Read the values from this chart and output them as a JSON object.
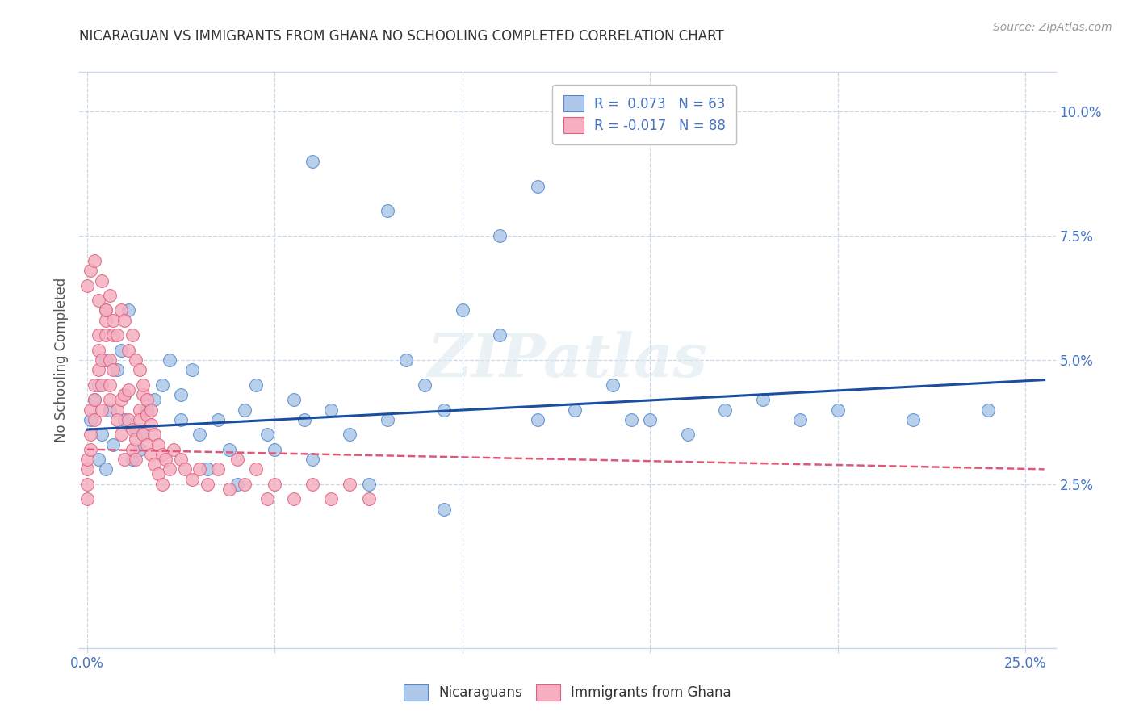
{
  "title": "NICARAGUAN VS IMMIGRANTS FROM GHANA NO SCHOOLING COMPLETED CORRELATION CHART",
  "source": "Source: ZipAtlas.com",
  "xlabel_ticks_shown": [
    "0.0%",
    "25.0%"
  ],
  "xlabel_vals_shown": [
    0.0,
    0.25
  ],
  "xlabel_grid_vals": [
    0.0,
    0.05,
    0.1,
    0.15,
    0.2,
    0.25
  ],
  "ylabel_ticks": [
    "2.5%",
    "5.0%",
    "7.5%",
    "10.0%"
  ],
  "ylabel_vals": [
    0.025,
    0.05,
    0.075,
    0.1
  ],
  "ylabel_label": "No Schooling Completed",
  "xlim": [
    -0.002,
    0.258
  ],
  "ylim": [
    -0.008,
    0.108
  ],
  "legend_blue_label": "R =  0.073   N = 63",
  "legend_pink_label": "R = -0.017   N = 88",
  "blue_color": "#adc8e8",
  "pink_color": "#f5afc0",
  "blue_edge_color": "#5588cc",
  "pink_edge_color": "#e06080",
  "blue_line_color": "#1a4fa0",
  "pink_line_color": "#e05878",
  "watermark": "ZIPatlas",
  "blue_line_x": [
    0.0,
    0.255
  ],
  "blue_line_y": [
    0.036,
    0.046
  ],
  "pink_line_x": [
    0.0,
    0.255
  ],
  "pink_line_y": [
    0.032,
    0.028
  ],
  "nicaraguan_x": [
    0.001,
    0.002,
    0.003,
    0.003,
    0.004,
    0.005,
    0.005,
    0.006,
    0.007,
    0.008,
    0.009,
    0.01,
    0.01,
    0.011,
    0.012,
    0.013,
    0.014,
    0.015,
    0.016,
    0.018,
    0.02,
    0.022,
    0.025,
    0.025,
    0.028,
    0.03,
    0.032,
    0.035,
    0.038,
    0.04,
    0.042,
    0.045,
    0.048,
    0.05,
    0.055,
    0.058,
    0.06,
    0.065,
    0.07,
    0.075,
    0.08,
    0.085,
    0.09,
    0.095,
    0.1,
    0.11,
    0.12,
    0.13,
    0.14,
    0.15,
    0.16,
    0.17,
    0.18,
    0.19,
    0.2,
    0.22,
    0.24,
    0.12,
    0.08,
    0.06,
    0.11,
    0.095,
    0.145
  ],
  "nicaraguan_y": [
    0.038,
    0.042,
    0.03,
    0.045,
    0.035,
    0.028,
    0.05,
    0.04,
    0.033,
    0.048,
    0.052,
    0.043,
    0.038,
    0.06,
    0.03,
    0.036,
    0.032,
    0.035,
    0.04,
    0.042,
    0.045,
    0.05,
    0.038,
    0.043,
    0.048,
    0.035,
    0.028,
    0.038,
    0.032,
    0.025,
    0.04,
    0.045,
    0.035,
    0.032,
    0.042,
    0.038,
    0.03,
    0.04,
    0.035,
    0.025,
    0.038,
    0.05,
    0.045,
    0.04,
    0.06,
    0.055,
    0.038,
    0.04,
    0.045,
    0.038,
    0.035,
    0.04,
    0.042,
    0.038,
    0.04,
    0.038,
    0.04,
    0.085,
    0.08,
    0.09,
    0.075,
    0.02,
    0.038
  ],
  "ghana_x": [
    0.0,
    0.0,
    0.0,
    0.0,
    0.001,
    0.001,
    0.001,
    0.002,
    0.002,
    0.002,
    0.003,
    0.003,
    0.003,
    0.004,
    0.004,
    0.004,
    0.005,
    0.005,
    0.005,
    0.006,
    0.006,
    0.006,
    0.007,
    0.007,
    0.008,
    0.008,
    0.009,
    0.009,
    0.01,
    0.01,
    0.011,
    0.011,
    0.012,
    0.012,
    0.013,
    0.013,
    0.014,
    0.014,
    0.015,
    0.015,
    0.016,
    0.016,
    0.017,
    0.017,
    0.018,
    0.018,
    0.019,
    0.019,
    0.02,
    0.02,
    0.021,
    0.022,
    0.023,
    0.025,
    0.026,
    0.028,
    0.03,
    0.032,
    0.035,
    0.038,
    0.04,
    0.042,
    0.045,
    0.048,
    0.05,
    0.055,
    0.06,
    0.065,
    0.07,
    0.075,
    0.0,
    0.001,
    0.002,
    0.003,
    0.004,
    0.005,
    0.006,
    0.007,
    0.008,
    0.009,
    0.01,
    0.011,
    0.012,
    0.013,
    0.014,
    0.015,
    0.016,
    0.017
  ],
  "ghana_y": [
    0.025,
    0.028,
    0.022,
    0.03,
    0.035,
    0.032,
    0.04,
    0.038,
    0.042,
    0.045,
    0.048,
    0.052,
    0.055,
    0.05,
    0.045,
    0.04,
    0.06,
    0.058,
    0.055,
    0.05,
    0.045,
    0.042,
    0.055,
    0.048,
    0.04,
    0.038,
    0.042,
    0.035,
    0.043,
    0.03,
    0.038,
    0.044,
    0.032,
    0.036,
    0.03,
    0.034,
    0.04,
    0.038,
    0.043,
    0.035,
    0.039,
    0.033,
    0.037,
    0.031,
    0.035,
    0.029,
    0.033,
    0.027,
    0.031,
    0.025,
    0.03,
    0.028,
    0.032,
    0.03,
    0.028,
    0.026,
    0.028,
    0.025,
    0.028,
    0.024,
    0.03,
    0.025,
    0.028,
    0.022,
    0.025,
    0.022,
    0.025,
    0.022,
    0.025,
    0.022,
    0.065,
    0.068,
    0.07,
    0.062,
    0.066,
    0.06,
    0.063,
    0.058,
    0.055,
    0.06,
    0.058,
    0.052,
    0.055,
    0.05,
    0.048,
    0.045,
    0.042,
    0.04
  ]
}
